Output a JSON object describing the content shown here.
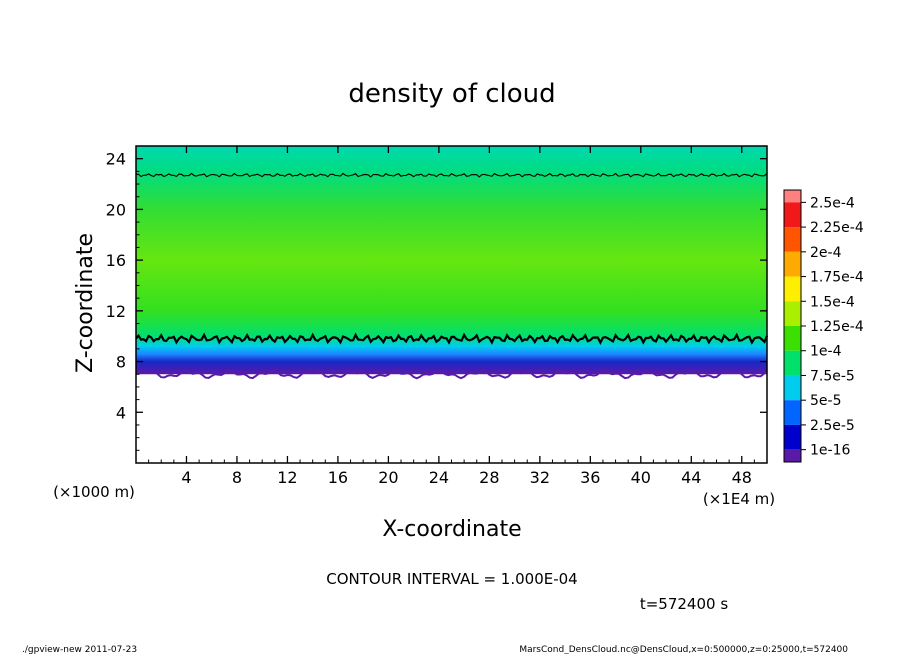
{
  "chart_data": {
    "type": "heatmap",
    "title": "density of cloud",
    "xlabel": "X-coordinate",
    "ylabel": "Z-coordinate",
    "x_unit": "(×1E4 m)",
    "y_unit": "(×1000 m)",
    "xlim": [
      0,
      50
    ],
    "ylim": [
      0,
      25
    ],
    "x_ticks": [
      4,
      8,
      12,
      16,
      20,
      24,
      28,
      32,
      36,
      40,
      44,
      48
    ],
    "y_ticks": [
      4,
      8,
      12,
      16,
      20,
      24
    ],
    "x_tick_labels": [
      "4",
      "8",
      "12",
      "16",
      "20",
      "24",
      "28",
      "32",
      "36",
      "40",
      "44",
      "48"
    ],
    "y_tick_labels": [
      "4",
      "8",
      "12",
      "16",
      "20",
      "24"
    ],
    "colorbar": {
      "labels": [
        "2.5e-4",
        "2.25e-4",
        "2e-4",
        "1.75e-4",
        "1.5e-4",
        "1.25e-4",
        "1e-4",
        "7.5e-5",
        "5e-5",
        "2.5e-5",
        "1e-16"
      ],
      "colors": [
        "#ff8080",
        "#f01818",
        "#ff5500",
        "#ffaa00",
        "#ffee00",
        "#aaee00",
        "#3be000",
        "#00e06a",
        "#00ccee",
        "#0066ff",
        "#0000cc",
        "#5a1aa8"
      ]
    },
    "field_profile": [
      {
        "z": 7.0,
        "value": 0,
        "color": "#5a1aa8"
      },
      {
        "z": 8.0,
        "value": 1e-05,
        "color": "#1828c8"
      },
      {
        "z": 8.6,
        "value": 4e-05,
        "color": "#1e88ff"
      },
      {
        "z": 9.2,
        "value": 8e-05,
        "color": "#00ccee"
      },
      {
        "z": 10.0,
        "value": 0.000105,
        "color": "#00e070"
      },
      {
        "z": 12.0,
        "value": 0.00013,
        "color": "#33e020"
      },
      {
        "z": 16.0,
        "value": 0.000135,
        "color": "#66e610"
      },
      {
        "z": 20.0,
        "value": 0.00012,
        "color": "#33dd33"
      },
      {
        "z": 23.0,
        "value": 0.0001,
        "color": "#00dd80"
      },
      {
        "z": 25.0,
        "value": 8.5e-05,
        "color": "#00d8b0"
      }
    ],
    "cloud_base_z": 7.0,
    "contour_levels": [
      0.0001
    ],
    "contour_lines_z": [
      9.8,
      22.7
    ],
    "contour_interval_text": "CONTOUR INTERVAL = 1.000E-04"
  },
  "time_label": "t=572400 s",
  "footer": {
    "left": "./gpview-new  2011-07-23",
    "right": "MarsCond_DensCloud.nc@DensCloud,x=0:500000,z=0:25000,t=572400"
  }
}
